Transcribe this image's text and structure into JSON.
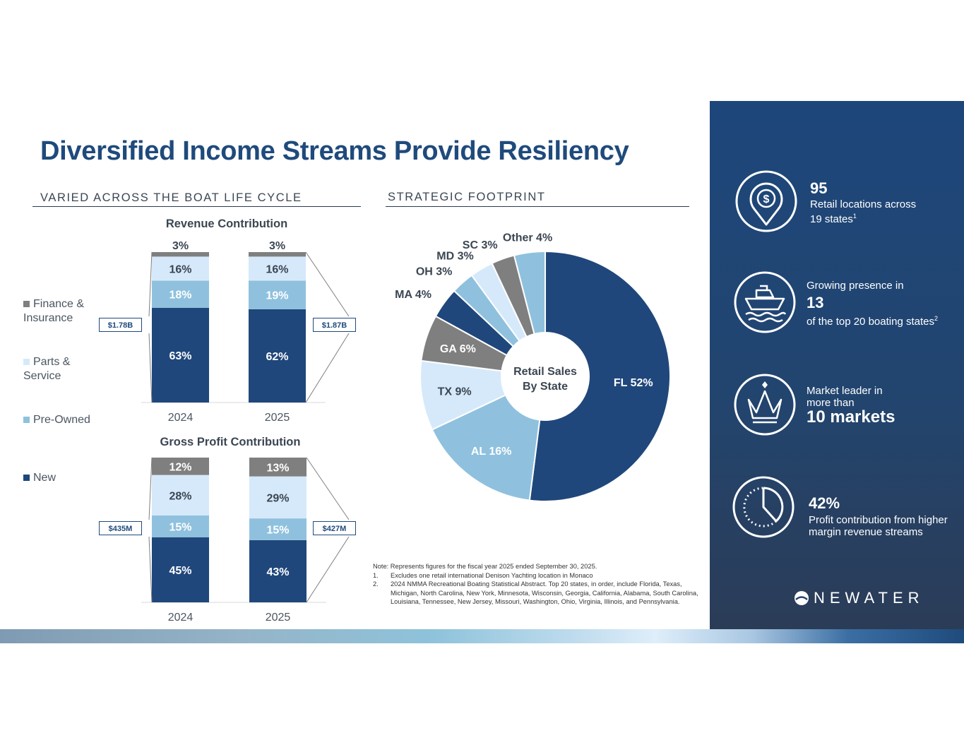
{
  "title": "Diversified Income Streams Provide Resiliency",
  "left_section": "VARIED ACROSS THE BOAT LIFE CYCLE",
  "right_section": "STRATEGIC FOOTPRINT",
  "legend": [
    {
      "label": "Finance & Insurance",
      "color": "#7f7f7f"
    },
    {
      "label": "Parts & Service",
      "color": "#d6e9fb"
    },
    {
      "label": "Pre-Owned",
      "color": "#8fc1de"
    },
    {
      "label": "New",
      "color": "#1f477b"
    }
  ],
  "totals": {
    "rev_2024": "$1.78B",
    "rev_2025": "$1.87B",
    "gp_2024": "$435M",
    "gp_2025": "$427M"
  },
  "pie_center": {
    "line1": "Retail Sales",
    "line2": "By State"
  },
  "note": {
    "intro": "Note: Represents figures for the fiscal year 2025 ended September 30, 2025.",
    "n1": "1.",
    "f1": "Excludes one retail international Denison Yachting location in Monaco",
    "n2": "2.",
    "f2": "2024 NMMA Recreational Boating Statistical Abstract. Top 20 states, in order, include Florida, Texas, Michigan, North Carolina, New York, Minnesota, Wisconsin, Georgia, California, Alabama, South Carolina, Louisiana, Tennessee, New Jersey, Missouri, Washington, Ohio, Virginia, Illinois, and Pennsylvania."
  },
  "stats": {
    "s1_big": "95",
    "s1_line1": "Retail locations across",
    "s1_line2": "19 states",
    "s1_sup": "1",
    "s2_pre": "Growing presence in",
    "s2_big": "13",
    "s2_line": "of the top 20 boating states",
    "s2_sup": "2",
    "s3_pre1": "Market leader in",
    "s3_pre2": "more than",
    "s3_big": "10 markets",
    "s4_big": "42%",
    "s4_line1": "Profit contribution from higher",
    "s4_line2": "margin revenue streams"
  },
  "logo": {
    "text": "NEWATER"
  },
  "icons": {
    "s1": "location-dollar-pin-icon",
    "s2": "boat-icon",
    "s3": "crown-icon",
    "s4": "clock-icon"
  },
  "chart_data": [
    {
      "type": "bar",
      "stacked": true,
      "title": "Revenue Contribution",
      "categories": [
        "2024",
        "2025"
      ],
      "series": [
        {
          "name": "New",
          "values": [
            63,
            62
          ],
          "color": "#1f477b"
        },
        {
          "name": "Pre-Owned",
          "values": [
            18,
            19
          ],
          "color": "#8fc1de"
        },
        {
          "name": "Parts & Service",
          "values": [
            16,
            16
          ],
          "color": "#d6e9fb"
        },
        {
          "name": "Finance & Insurance",
          "values": [
            3,
            3
          ],
          "color": "#7f7f7f"
        }
      ],
      "unit": "%"
    },
    {
      "type": "bar",
      "stacked": true,
      "title": "Gross Profit Contribution",
      "categories": [
        "2024",
        "2025"
      ],
      "series": [
        {
          "name": "New",
          "values": [
            45,
            43
          ],
          "color": "#1f477b"
        },
        {
          "name": "Pre-Owned",
          "values": [
            15,
            15
          ],
          "color": "#8fc1de"
        },
        {
          "name": "Parts & Service",
          "values": [
            28,
            29
          ],
          "color": "#d6e9fb"
        },
        {
          "name": "Finance & Insurance",
          "values": [
            12,
            13
          ],
          "color": "#7f7f7f"
        }
      ],
      "unit": "%"
    },
    {
      "type": "pie",
      "donut": true,
      "center_label": "Retail Sales By State",
      "slices": [
        {
          "label": "FL",
          "value": 52,
          "color": "#1f477b"
        },
        {
          "label": "AL",
          "value": 16,
          "color": "#8fc1de"
        },
        {
          "label": "TX",
          "value": 9,
          "color": "#d6e9fb"
        },
        {
          "label": "GA",
          "value": 6,
          "color": "#7f7f7f"
        },
        {
          "label": "MA",
          "value": 4,
          "color": "#1f477b"
        },
        {
          "label": "OH",
          "value": 3,
          "color": "#8fc1de"
        },
        {
          "label": "MD",
          "value": 3,
          "color": "#d6e9fb"
        },
        {
          "label": "SC",
          "value": 3,
          "color": "#7f7f7f"
        },
        {
          "label": "Other",
          "value": 4,
          "color": "#8fc1de"
        }
      ]
    }
  ]
}
